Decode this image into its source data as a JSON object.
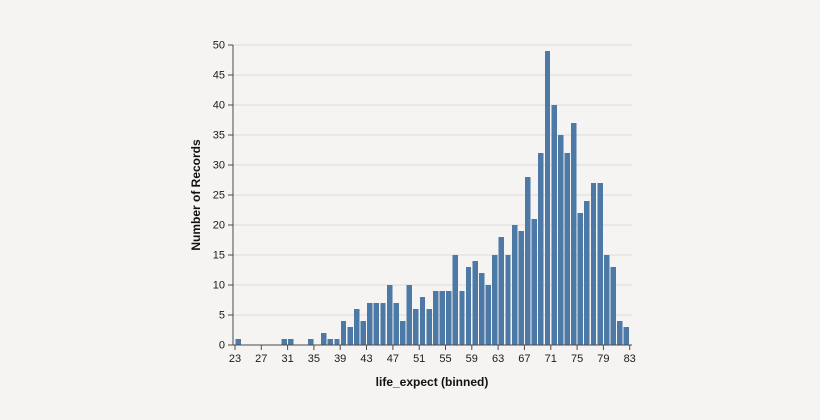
{
  "page": {
    "background_color": "#f5f4f2"
  },
  "chart_data": {
    "type": "bar",
    "subtype": "histogram",
    "title": "",
    "xlabel": "life_expect (binned)",
    "ylabel": "Number of Records",
    "bar_color": "#4d79a7",
    "grid": true,
    "legend_position": "none",
    "bin_start": 23,
    "bin_step": 1,
    "bin_end": 83,
    "counts": [
      1,
      0,
      0,
      0,
      0,
      0,
      0,
      1,
      1,
      0,
      0,
      1,
      0,
      2,
      1,
      1,
      4,
      3,
      6,
      4,
      7,
      7,
      7,
      10,
      7,
      4,
      10,
      6,
      8,
      6,
      9,
      9,
      9,
      15,
      9,
      13,
      14,
      12,
      10,
      15,
      18,
      15,
      20,
      19,
      28,
      21,
      32,
      49,
      40,
      35,
      32,
      37,
      22,
      24,
      27,
      27,
      15,
      13,
      4,
      3
    ],
    "total_records": 693,
    "x_ticks": [
      23,
      27,
      31,
      35,
      39,
      43,
      47,
      51,
      55,
      59,
      63,
      67,
      71,
      75,
      79,
      83
    ],
    "y_ticks": [
      0,
      5,
      10,
      15,
      20,
      25,
      30,
      35,
      40,
      45,
      50
    ],
    "xlim": [
      22.7,
      83.35
    ],
    "ylim": [
      0,
      50
    ]
  }
}
